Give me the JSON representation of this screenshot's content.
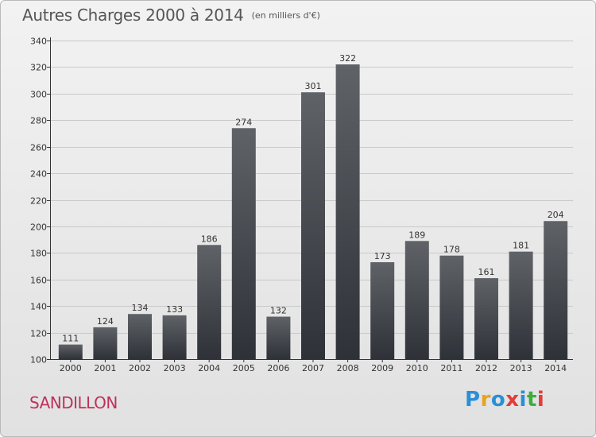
{
  "header": {
    "title": "Autres Charges 2000 à 2014",
    "subtitle": "(en milliers d'€)"
  },
  "footer": {
    "commune": "SANDILLON",
    "logo_text": "Proxiti",
    "logo_colors": [
      "#2a8fd6",
      "#e8a321",
      "#2a8fd6",
      "#e23c3c",
      "#2a8fd6",
      "#3cae3c",
      "#e23c3c"
    ]
  },
  "colors": {
    "bar_top": "#5f6368",
    "bar_bottom": "#2e3238",
    "grid": "#c9c9c9",
    "axis": "#333333",
    "text": "#333333",
    "commune": "#c0305a"
  },
  "chart_data": {
    "type": "bar",
    "categories": [
      "2000",
      "2001",
      "2002",
      "2003",
      "2004",
      "2005",
      "2006",
      "2007",
      "2008",
      "2009",
      "2010",
      "2011",
      "2012",
      "2013",
      "2014"
    ],
    "values": [
      111,
      124,
      134,
      133,
      186,
      274,
      132,
      301,
      322,
      173,
      189,
      178,
      161,
      181,
      204
    ],
    "title": "Autres Charges 2000 à 2014",
    "subtitle": "(en milliers d'€)",
    "xlabel": "",
    "ylabel": "",
    "ylim": [
      100,
      340
    ],
    "yticks": [
      100,
      120,
      140,
      160,
      180,
      200,
      220,
      240,
      260,
      280,
      300,
      320,
      340
    ],
    "grid": true,
    "data_labels": true
  }
}
